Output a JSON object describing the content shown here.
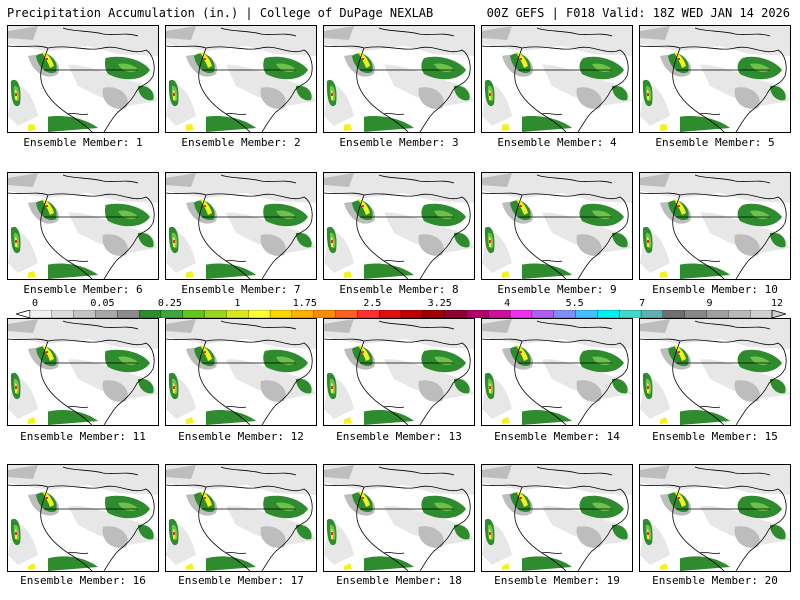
{
  "header": {
    "title_left": "Precipitation Accumulation (in.) | College of DuPage NEXLAB",
    "title_right": "00Z GEFS | F018 Valid: 18Z WED JAN 14 2026"
  },
  "panels": [
    {
      "label": "Ensemble Member: 1"
    },
    {
      "label": "Ensemble Member: 2"
    },
    {
      "label": "Ensemble Member: 3"
    },
    {
      "label": "Ensemble Member: 4"
    },
    {
      "label": "Ensemble Member: 5"
    },
    {
      "label": "Ensemble Member: 6"
    },
    {
      "label": "Ensemble Member: 7"
    },
    {
      "label": "Ensemble Member: 8"
    },
    {
      "label": "Ensemble Member: 9"
    },
    {
      "label": "Ensemble Member: 10"
    },
    {
      "label": "Ensemble Member: 11"
    },
    {
      "label": "Ensemble Member: 12"
    },
    {
      "label": "Ensemble Member: 13"
    },
    {
      "label": "Ensemble Member: 14"
    },
    {
      "label": "Ensemble Member: 15"
    },
    {
      "label": "Ensemble Member: 16"
    },
    {
      "label": "Ensemble Member: 17"
    },
    {
      "label": "Ensemble Member: 18"
    },
    {
      "label": "Ensemble Member: 19"
    },
    {
      "label": "Ensemble Member: 20"
    }
  ],
  "legend": {
    "tick_labels": [
      "0",
      "0.05",
      "0.25",
      "1",
      "1.75",
      "2.5",
      "3.25",
      "4",
      "5.5",
      "7",
      "9",
      "12"
    ],
    "colors": [
      "#f0f0f0",
      "#dcdcdc",
      "#c4c4c4",
      "#a8a8a8",
      "#8c8c8c",
      "#2e8b2e",
      "#3fa63f",
      "#63c41e",
      "#9ad41e",
      "#d8e81e",
      "#ffff33",
      "#ffd700",
      "#ffb000",
      "#ff8c00",
      "#ff6020",
      "#ff3030",
      "#e01010",
      "#c00000",
      "#a00000",
      "#900030",
      "#b0006a",
      "#d0109a",
      "#ee30ee",
      "#b060f0",
      "#7f8ff5",
      "#40c0ff",
      "#00f0f0",
      "#40d8c8",
      "#60b0b0",
      "#707070",
      "#888888",
      "#a0a0a0",
      "#b8b8b8",
      "#d0d0d0"
    ]
  },
  "map_colors": {
    "light_gray": "#e6e6e6",
    "mid_gray": "#bdbdbd",
    "dark_gray": "#8f8f8f",
    "green": "#2e8b2e",
    "light_green": "#6cc24a",
    "yellow": "#f2f21e",
    "orange": "#f5a623",
    "red": "#e03020"
  }
}
